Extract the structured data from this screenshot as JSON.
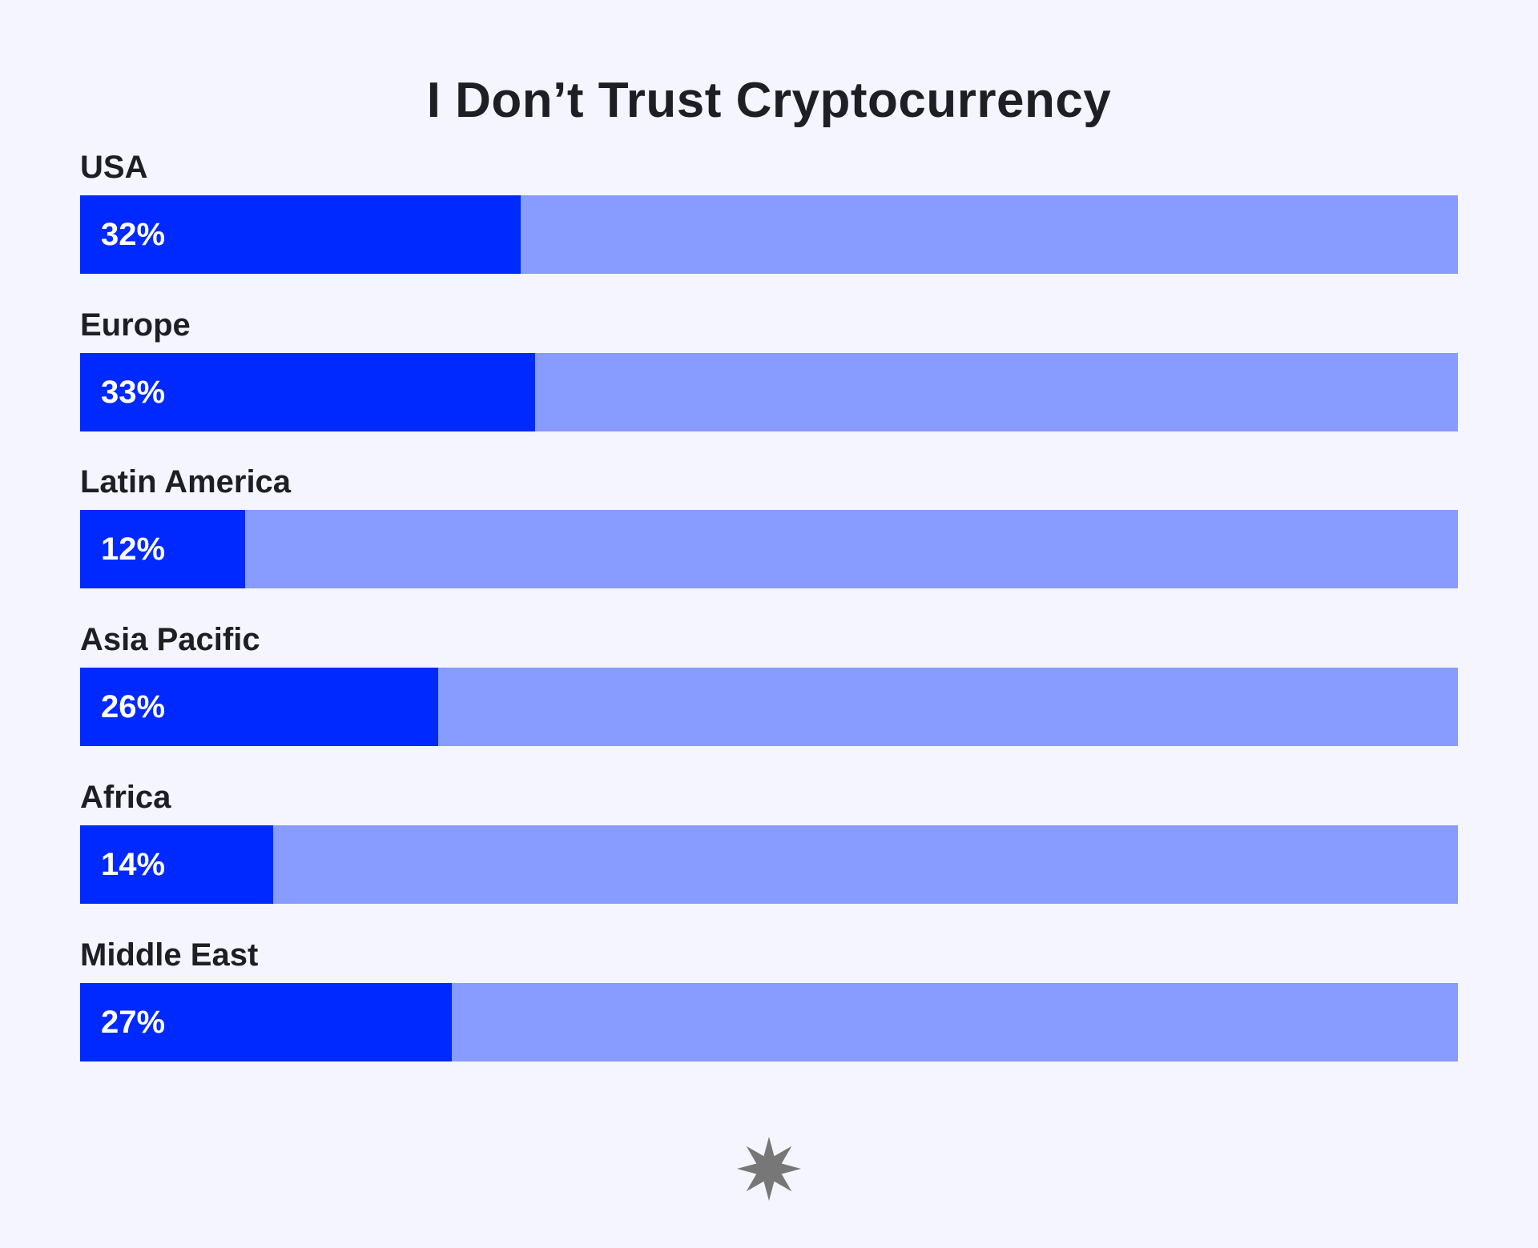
{
  "chart_data": {
    "type": "bar",
    "orientation": "horizontal",
    "title": "I Don’t Trust Cryptocurrency",
    "categories": [
      "USA",
      "Europe",
      "Latin America",
      "Asia Pacific",
      "Africa",
      "Middle East"
    ],
    "values": [
      32,
      33,
      12,
      26,
      14,
      27
    ],
    "value_labels": [
      "32%",
      "33%",
      "12%",
      "26%",
      "14%",
      "27%"
    ],
    "unit": "%",
    "xlim": [
      0,
      100
    ],
    "grid": false,
    "legend": "none",
    "colors": {
      "fill": "#0029ff",
      "track": "#889bff",
      "background": "#f4f5fe",
      "text": "#1d1f24",
      "value_text": "#ffffff",
      "logo": "#777777"
    }
  },
  "logo": {
    "icon": "starburst-icon"
  }
}
